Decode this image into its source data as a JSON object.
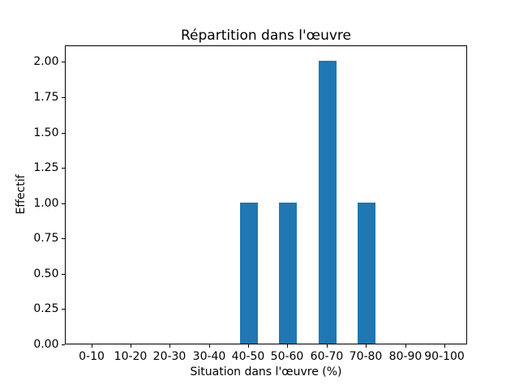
{
  "chart_data": {
    "type": "bar",
    "title": "Répartition dans l'œuvre",
    "xlabel": "Situation dans l'œuvre (%)",
    "ylabel": "Effectif",
    "categories": [
      "0-10",
      "10-20",
      "20-30",
      "30-40",
      "40-50",
      "50-60",
      "60-70",
      "70-80",
      "80-90",
      "90-100"
    ],
    "values": [
      0,
      0,
      0,
      0,
      1,
      1,
      2,
      1,
      0,
      0
    ],
    "ytick_labels": [
      "0.00",
      "0.25",
      "0.50",
      "0.75",
      "1.00",
      "1.25",
      "1.50",
      "1.75",
      "2.00"
    ],
    "yticks": [
      0.0,
      0.25,
      0.5,
      0.75,
      1.0,
      1.25,
      1.5,
      1.75,
      2.0
    ],
    "ylim": [
      0,
      2.117
    ],
    "bar_color": "#1f77b4",
    "axis_color": "#000000",
    "background_color": "#ffffff",
    "grid": false,
    "legend_position": "none"
  }
}
